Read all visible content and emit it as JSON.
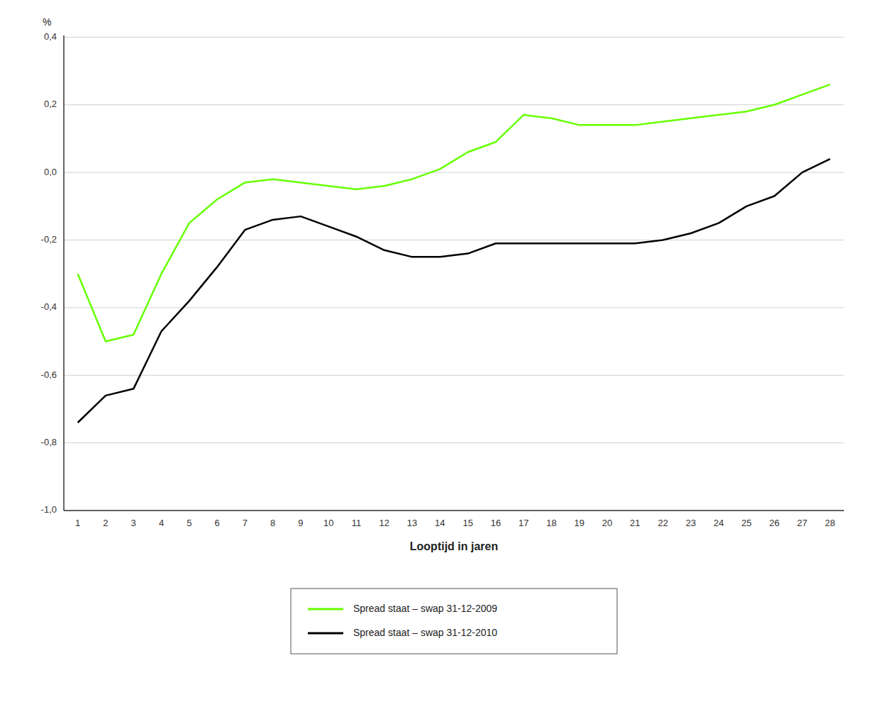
{
  "chart_data": {
    "type": "line",
    "xlabel": "Looptijd in jaren",
    "ylabel": "%",
    "x": [
      1,
      2,
      3,
      4,
      5,
      6,
      7,
      8,
      9,
      10,
      11,
      12,
      13,
      14,
      15,
      16,
      17,
      18,
      19,
      20,
      21,
      22,
      23,
      24,
      25,
      26,
      27,
      28
    ],
    "series": [
      {
        "name": "Spread staat – swap 31-12-2009",
        "color": "#66ff00",
        "values": [
          -0.3,
          -0.5,
          -0.48,
          -0.3,
          -0.15,
          -0.08,
          -0.03,
          -0.02,
          -0.03,
          -0.04,
          -0.05,
          -0.04,
          -0.02,
          0.01,
          0.06,
          0.09,
          0.17,
          0.16,
          0.14,
          0.14,
          0.14,
          0.15,
          0.16,
          0.17,
          0.18,
          0.2,
          0.23,
          0.26
        ]
      },
      {
        "name": "Spread staat – swap 31-12-2010",
        "color": "#000000",
        "values": [
          -0.74,
          -0.66,
          -0.64,
          -0.47,
          -0.38,
          -0.28,
          -0.17,
          -0.14,
          -0.13,
          -0.16,
          -0.19,
          -0.23,
          -0.25,
          -0.25,
          -0.24,
          -0.21,
          -0.21,
          -0.21,
          -0.21,
          -0.21,
          -0.21,
          -0.2,
          -0.18,
          -0.15,
          -0.1,
          -0.07,
          0.0,
          0.04
        ]
      }
    ],
    "xlim": [
      0.5,
      28.5
    ],
    "xticks": [
      1,
      2,
      3,
      4,
      5,
      6,
      7,
      8,
      9,
      10,
      11,
      12,
      13,
      14,
      15,
      16,
      17,
      18,
      19,
      20,
      21,
      22,
      23,
      24,
      25,
      26,
      27,
      28
    ],
    "ylim": [
      -1.0,
      0.405
    ],
    "yticks": [
      {
        "value": 0.4,
        "label": "0,4"
      },
      {
        "value": 0.2,
        "label": "0,2"
      },
      {
        "value": 0.0,
        "label": "0,0"
      },
      {
        "value": -0.2,
        "label": "-0,2"
      },
      {
        "value": -0.4,
        "label": "-0,4"
      },
      {
        "value": -0.6,
        "label": "-0,6"
      },
      {
        "value": -0.8,
        "label": "-0,8"
      },
      {
        "value": -1.0,
        "label": "-1,0"
      }
    ],
    "grid": true,
    "legend": "bottom"
  }
}
